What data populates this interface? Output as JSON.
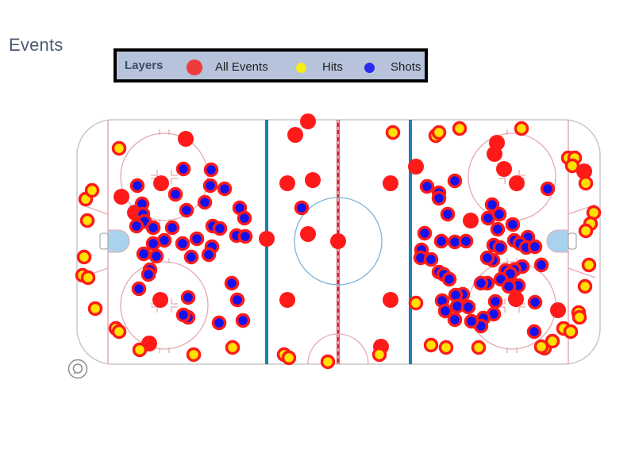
{
  "header": {
    "title": "Events"
  },
  "legend": {
    "title": "Layers",
    "items": [
      {
        "label": "All Events",
        "color": "#ee3b3b",
        "icon": "red-circle-icon"
      },
      {
        "label": "Hits",
        "color": "#f5ed16",
        "icon": "yellow-circle-icon"
      },
      {
        "label": "Shots",
        "color": "#2b2bee",
        "icon": "blue-circle-icon"
      }
    ]
  },
  "map": {
    "type": "hockey-rink-event-map",
    "layers": [
      "All Events",
      "Hits",
      "Shots"
    ],
    "colors": {
      "event": "#ff1a1a",
      "hit_fill": "#ffe100",
      "hit_ring": "#ff1a1a",
      "shot_fill": "#1212ee",
      "shot_ring": "#ff1a1a",
      "blue_line": "#1e7fb0",
      "red_line": "#cc2233",
      "crease": "#a9d2ee"
    }
  },
  "attribution": {
    "icon": "attribution-icon"
  }
}
